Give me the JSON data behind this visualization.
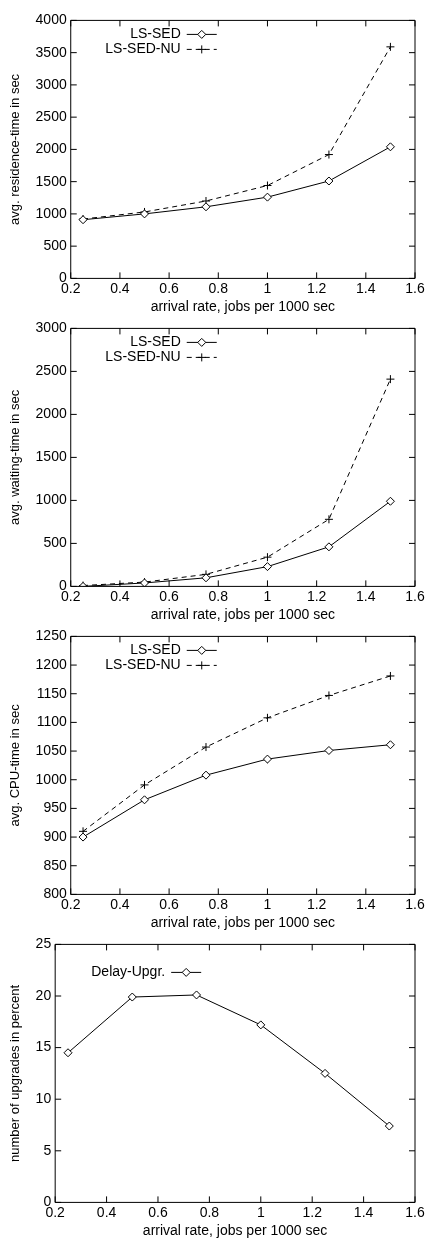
{
  "chart_data": [
    {
      "type": "line",
      "xlabel": "arrival rate, jobs per 1000 sec",
      "ylabel": "avg. residence-time in sec",
      "x": [
        0.25,
        0.5,
        0.75,
        1,
        1.25,
        1.5
      ],
      "xlim": [
        0.2,
        1.6
      ],
      "xticks": [
        0.2,
        0.4,
        0.6,
        0.8,
        1,
        1.2,
        1.4,
        1.6
      ],
      "ylim": [
        0,
        4000
      ],
      "yticks": [
        0,
        500,
        1000,
        1500,
        2000,
        2500,
        3000,
        3500,
        4000
      ],
      "legend": "top left",
      "series": [
        {
          "name": "LS-SED",
          "color": "#000000",
          "marker": "diamond",
          "line_style": "solid",
          "values": [
            910,
            1000,
            1110,
            1260,
            1510,
            2040
          ]
        },
        {
          "name": "LS-SED-NU",
          "color": "#000000",
          "marker": "cross",
          "line_style": "dashed",
          "values": [
            920,
            1030,
            1200,
            1440,
            1920,
            3590
          ]
        }
      ]
    },
    {
      "type": "line",
      "xlabel": "arrival rate, jobs per 1000 sec",
      "ylabel": "avg. waiting-time in sec",
      "x": [
        0.25,
        0.5,
        0.75,
        1,
        1.25,
        1.5
      ],
      "xlim": [
        0.2,
        1.6
      ],
      "xticks": [
        0.2,
        0.4,
        0.6,
        0.8,
        1,
        1.2,
        1.4,
        1.6
      ],
      "ylim": [
        0,
        3000
      ],
      "yticks": [
        0,
        500,
        1000,
        1500,
        2000,
        2500,
        3000
      ],
      "legend": "top left",
      "series": [
        {
          "name": "LS-SED",
          "color": "#000000",
          "marker": "diamond",
          "line_style": "solid",
          "values": [
            0,
            40,
            100,
            230,
            460,
            990
          ]
        },
        {
          "name": "LS-SED-NU",
          "color": "#000000",
          "marker": "cross",
          "line_style": "dashed",
          "values": [
            10,
            50,
            140,
            340,
            780,
            2410
          ]
        }
      ]
    },
    {
      "type": "line",
      "xlabel": "arrival rate, jobs per 1000 sec",
      "ylabel": "avg. CPU-time in sec",
      "x": [
        0.25,
        0.5,
        0.75,
        1,
        1.25,
        1.5
      ],
      "xlim": [
        0.2,
        1.6
      ],
      "xticks": [
        0.2,
        0.4,
        0.6,
        0.8,
        1,
        1.2,
        1.4,
        1.6
      ],
      "ylim": [
        800,
        1250
      ],
      "yticks": [
        800,
        850,
        900,
        950,
        1000,
        1050,
        1100,
        1150,
        1200,
        1250
      ],
      "legend": "top left",
      "series": [
        {
          "name": "LS-SED",
          "color": "#000000",
          "marker": "diamond",
          "line_style": "solid",
          "values": [
            900,
            965,
            1008,
            1036,
            1051,
            1061
          ]
        },
        {
          "name": "LS-SED-NU",
          "color": "#000000",
          "marker": "cross",
          "line_style": "dashed",
          "values": [
            910,
            991,
            1057,
            1108,
            1147,
            1181
          ]
        }
      ]
    },
    {
      "type": "line",
      "xlabel": "arrival rate, jobs per 1000 sec",
      "ylabel": "number of upgrades in percent",
      "x": [
        0.25,
        0.5,
        0.75,
        1,
        1.25,
        1.5
      ],
      "xlim": [
        0.2,
        1.6
      ],
      "xticks": [
        0.2,
        0.4,
        0.6,
        0.8,
        1,
        1.2,
        1.4,
        1.6
      ],
      "ylim": [
        0,
        25
      ],
      "yticks": [
        0,
        5,
        10,
        15,
        20,
        25
      ],
      "legend": "top left",
      "series": [
        {
          "name": "Delay-Upgr.",
          "color": "#000000",
          "marker": "diamond",
          "line_style": "solid",
          "values": [
            14.5,
            19.9,
            20.1,
            17.2,
            12.5,
            7.4
          ]
        }
      ]
    }
  ]
}
